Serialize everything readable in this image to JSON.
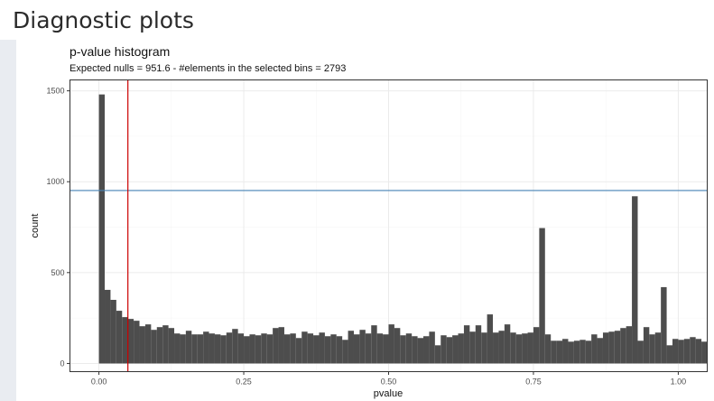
{
  "page": {
    "title": "Diagnostic plots"
  },
  "colors": {
    "bar_fill": "#4d4d4d",
    "hline": "#4682b4",
    "vline": "#cc0000",
    "grid_major": "#ebebeb",
    "grid_minor": "#f4f4f4",
    "panel_border": "#333333"
  },
  "chart_data": {
    "type": "bar",
    "title": "p-value histogram",
    "subtitle": "Expected nulls = 951.6 - #elements in the selected bins = 2793",
    "xlabel": "pvalue",
    "ylabel": "count",
    "xlim": [
      -0.05,
      1.05
    ],
    "ylim": [
      -45,
      1560
    ],
    "xticks": [
      0,
      0.25,
      0.5,
      0.75,
      1
    ],
    "xtick_labels": [
      "0.00",
      "0.25",
      "0.50",
      "0.75",
      "1.00"
    ],
    "yticks": [
      0,
      500,
      1000,
      1500
    ],
    "ytick_labels": [
      "0",
      "500",
      "1000",
      "1500"
    ],
    "grid": true,
    "legend": "none",
    "bin_width": 0.01,
    "bins_start": 0,
    "values": [
      1480,
      405,
      350,
      290,
      255,
      245,
      235,
      205,
      215,
      185,
      200,
      210,
      195,
      165,
      160,
      180,
      160,
      160,
      175,
      165,
      160,
      155,
      170,
      190,
      165,
      150,
      160,
      155,
      165,
      160,
      195,
      200,
      160,
      165,
      140,
      175,
      165,
      155,
      170,
      150,
      160,
      150,
      130,
      180,
      160,
      185,
      165,
      210,
      165,
      160,
      215,
      195,
      155,
      165,
      150,
      140,
      150,
      175,
      100,
      155,
      145,
      155,
      165,
      210,
      175,
      210,
      170,
      270,
      170,
      180,
      215,
      170,
      160,
      165,
      170,
      200,
      745,
      160,
      125,
      125,
      135,
      120,
      125,
      130,
      125,
      160,
      140,
      170,
      175,
      180,
      195,
      205,
      920,
      125,
      200,
      160,
      170,
      420,
      100,
      135,
      130,
      135,
      145,
      135,
      120
    ],
    "hline": 951.6,
    "vline": 0.05
  }
}
